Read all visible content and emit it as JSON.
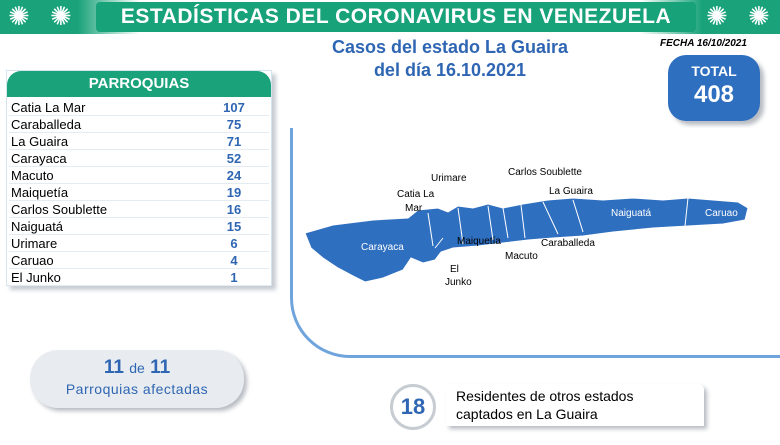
{
  "banner": {
    "title": "ESTADÍSTICAS DEL CORONAVIRUS EN VENEZUELA"
  },
  "subtitle": {
    "line1": "Casos del estado La Guaira",
    "line2": "del día 16.10.2021"
  },
  "fecha": "FECHA 16/10/2021",
  "total": {
    "label": "TOTAL",
    "value": "408"
  },
  "parroquias": {
    "header": "PARROQUIAS",
    "rows": [
      {
        "name": "Catia La Mar",
        "value": "107"
      },
      {
        "name": "Caraballeda",
        "value": "75"
      },
      {
        "name": "La Guaira",
        "value": "71"
      },
      {
        "name": "Carayaca",
        "value": "52"
      },
      {
        "name": "Macuto",
        "value": "24"
      },
      {
        "name": "Maiquetía",
        "value": "19"
      },
      {
        "name": "Carlos Soublette",
        "value": "16"
      },
      {
        "name": "Naiguatá",
        "value": "15"
      },
      {
        "name": "Urimare",
        "value": "6"
      },
      {
        "name": "Caruao",
        "value": "4"
      },
      {
        "name": "El Junko",
        "value": "1"
      }
    ]
  },
  "map": {
    "labels": {
      "urimare": "Urimare",
      "carlos_soublette": "Carlos Soublette",
      "catia_la_mar_1": "Catia La",
      "catia_la_mar_2": "Mar",
      "la_guaira": "La Guaira",
      "naiguata": "Naiguatá",
      "caruao": "Caruao",
      "carayaca": "Carayaca",
      "maiquetia": "Maiquetía",
      "caraballeda": "Caraballeda",
      "macuto": "Macuto",
      "el_junko_1": "El",
      "el_junko_2": "Junko"
    },
    "fill_color": "#2f6fc0"
  },
  "afectadas": {
    "count": "11",
    "de": "de",
    "total": "11",
    "label": "Parroquias  afectadas"
  },
  "residentes": {
    "count": "18",
    "line1": "Residentes de otros estados",
    "line2": "captados en La Guaira"
  },
  "colors": {
    "green": "#1aa37a",
    "blue": "#2f6fc0",
    "text_blue": "#2f66b3"
  },
  "icons": {
    "banner_decoration": "virus-icon"
  }
}
